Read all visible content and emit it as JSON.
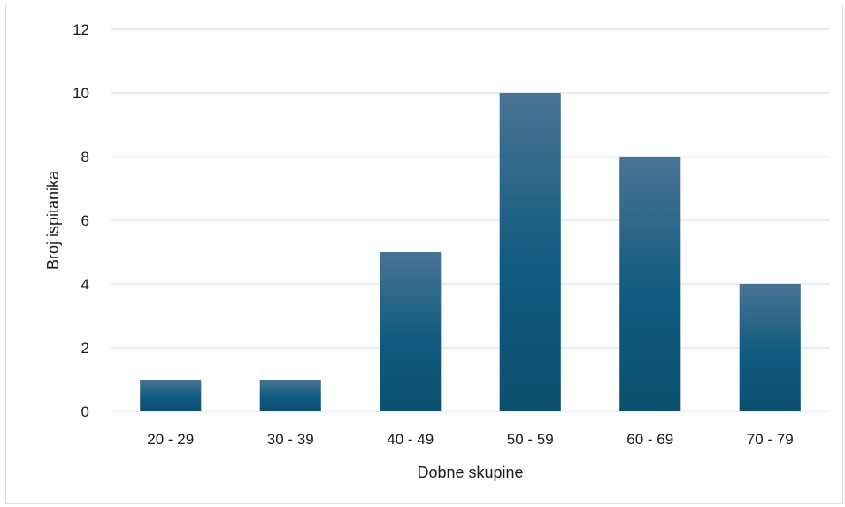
{
  "chart_data": {
    "type": "bar",
    "title": "",
    "xlabel": "Dobne skupine",
    "ylabel": "Broj ispitanika",
    "categories": [
      "20 - 29",
      "30 - 39",
      "40 - 49",
      "50 - 59",
      "60 - 69",
      "70 - 79"
    ],
    "values": [
      1,
      1,
      5,
      10,
      8,
      4
    ],
    "ylim": [
      0,
      12
    ],
    "yticks": [
      "0",
      "2",
      "4",
      "6",
      "8",
      "10",
      "12"
    ],
    "grid": true,
    "legend": "none",
    "colors": {
      "bar_top": "#4a7392",
      "bar_mid": "#0f5b80",
      "bar_bottom": "#0d4f70",
      "gridline": "#c9d8ea",
      "axis": "#c9d8ea"
    }
  }
}
